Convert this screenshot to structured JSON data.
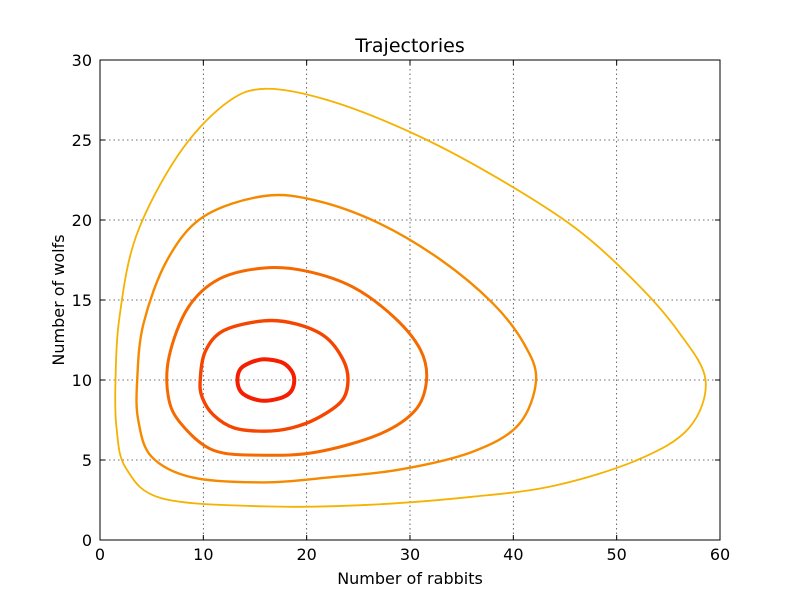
{
  "chart_data": {
    "type": "line",
    "title": "Trajectories",
    "xlabel": "Number of rabbits",
    "ylabel": "Number of wolfs",
    "xlim": [
      0,
      60
    ],
    "ylim": [
      0,
      30
    ],
    "xticks": [
      0,
      10,
      20,
      30,
      40,
      50,
      60
    ],
    "yticks": [
      0,
      5,
      10,
      15,
      20,
      25,
      30
    ],
    "xtick_labels": [
      "0",
      "10",
      "20",
      "30",
      "40",
      "50",
      "60"
    ],
    "ytick_labels": [
      "0",
      "5",
      "10",
      "15",
      "20",
      "25",
      "30"
    ],
    "grid": true,
    "series": [
      {
        "color": "#f5b200",
        "points": [
          [
            15.9,
            28.2
          ],
          [
            22,
            27.5
          ],
          [
            30,
            25.5
          ],
          [
            38,
            22.8
          ],
          [
            46,
            19.5
          ],
          [
            52,
            16
          ],
          [
            56,
            13
          ],
          [
            58.6,
            10
          ],
          [
            57,
            7
          ],
          [
            52,
            5
          ],
          [
            44,
            3.4
          ],
          [
            36,
            2.7
          ],
          [
            26,
            2.2
          ],
          [
            16,
            2.1
          ],
          [
            6,
            2.6
          ],
          [
            2.5,
            4.5
          ],
          [
            1.6,
            7
          ],
          [
            1.5,
            10
          ],
          [
            1.9,
            14
          ],
          [
            3.5,
            19
          ],
          [
            7.5,
            24
          ],
          [
            12,
            27.2
          ],
          [
            15.9,
            28.2
          ]
        ]
      },
      {
        "color": "#f58a00",
        "points": [
          [
            15.9,
            21.5
          ],
          [
            21,
            21.2
          ],
          [
            27,
            19.8
          ],
          [
            33,
            17.5
          ],
          [
            38,
            14.8
          ],
          [
            41,
            12.3
          ],
          [
            42.2,
            10
          ],
          [
            40.5,
            7.2
          ],
          [
            36,
            5.5
          ],
          [
            29,
            4.4
          ],
          [
            22,
            3.9
          ],
          [
            15.9,
            3.6
          ],
          [
            9,
            3.9
          ],
          [
            5,
            5.2
          ],
          [
            3.7,
            7.5
          ],
          [
            3.6,
            10
          ],
          [
            4.2,
            13.5
          ],
          [
            6.5,
            17.5
          ],
          [
            10,
            20.2
          ],
          [
            15.9,
            21.5
          ]
        ]
      },
      {
        "color": "#f56a00",
        "points": [
          [
            15.9,
            17
          ],
          [
            20,
            16.8
          ],
          [
            24.5,
            15.8
          ],
          [
            28.5,
            13.9
          ],
          [
            31,
            11.9
          ],
          [
            31.6,
            10
          ],
          [
            30.5,
            8.1
          ],
          [
            27,
            6.6
          ],
          [
            21,
            5.5
          ],
          [
            15.9,
            5.3
          ],
          [
            11,
            5.6
          ],
          [
            7.8,
            7.3
          ],
          [
            6.6,
            9
          ],
          [
            6.7,
            11.5
          ],
          [
            8.5,
            14.5
          ],
          [
            11.5,
            16.3
          ],
          [
            15.9,
            17
          ]
        ]
      },
      {
        "color": "#f54500",
        "points": [
          [
            15.9,
            13.7
          ],
          [
            19,
            13.5
          ],
          [
            21.8,
            12.7
          ],
          [
            23.5,
            11.3
          ],
          [
            24,
            10
          ],
          [
            23.4,
            8.7
          ],
          [
            21,
            7.6
          ],
          [
            18.5,
            7
          ],
          [
            15.9,
            6.8
          ],
          [
            13,
            7
          ],
          [
            11,
            7.8
          ],
          [
            9.9,
            8.9
          ],
          [
            9.7,
            10
          ],
          [
            10.2,
            11.8
          ],
          [
            12,
            13.1
          ],
          [
            15.9,
            13.7
          ]
        ]
      },
      {
        "color": "#f51e00",
        "points": [
          [
            15.9,
            11.3
          ],
          [
            17.6,
            11.1
          ],
          [
            18.5,
            10.6
          ],
          [
            18.8,
            10
          ],
          [
            18.5,
            9.3
          ],
          [
            17.6,
            8.9
          ],
          [
            15.9,
            8.7
          ],
          [
            14.5,
            8.9
          ],
          [
            13.6,
            9.3
          ],
          [
            13.3,
            10
          ],
          [
            13.6,
            10.7
          ],
          [
            14.6,
            11.1
          ],
          [
            15.9,
            11.3
          ]
        ]
      }
    ]
  }
}
